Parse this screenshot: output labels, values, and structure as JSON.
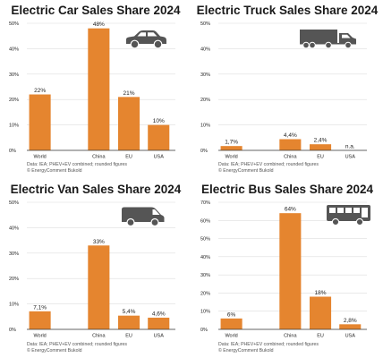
{
  "colors": {
    "bar": "#e5852f",
    "grid": "#dddddd",
    "axis": "#333333",
    "text": "#222222",
    "icon": "#555555"
  },
  "chart_data": [
    {
      "type": "bar",
      "title": "Electric Car Sales Share 2024",
      "icon": "car-icon",
      "categories": [
        "World",
        "China",
        "EU",
        "USA"
      ],
      "values": [
        22,
        48,
        21,
        10
      ],
      "value_labels": [
        "22%",
        "48%",
        "21%",
        "10%"
      ],
      "yticks": [
        "0%",
        "10%",
        "20%",
        "30%",
        "40%",
        "50%"
      ],
      "ylim": [
        0,
        50
      ],
      "note_line1": "Data: IEA; PHEV+EV combined; rounded figures",
      "note_line2": "© EnergyComment Bukold"
    },
    {
      "type": "bar",
      "title": "Electric Truck Sales Share 2024",
      "icon": "truck-icon",
      "categories": [
        "World",
        "China",
        "EU",
        "USA"
      ],
      "values": [
        1.7,
        4.4,
        2.4,
        null
      ],
      "value_labels": [
        "1,7%",
        "4,4%",
        "2,4%",
        "n.a."
      ],
      "yticks": [
        "0%",
        "10%",
        "20%",
        "30%",
        "40%",
        "50%"
      ],
      "ylim": [
        0,
        50
      ],
      "note_line1": "Data: IEA; PHEV+EV combined; rounded figures",
      "note_line2": "© EnergyComment Bukold"
    },
    {
      "type": "bar",
      "title": "Electric Van Sales Share 2024",
      "icon": "van-icon",
      "categories": [
        "World",
        "China",
        "EU",
        "USA"
      ],
      "values": [
        7.1,
        33,
        5.4,
        4.6
      ],
      "value_labels": [
        "7,1%",
        "33%",
        "5,4%",
        "4,6%"
      ],
      "yticks": [
        "0%",
        "10%",
        "20%",
        "30%",
        "40%",
        "50%"
      ],
      "ylim": [
        0,
        50
      ],
      "note_line1": "Data: IEA; PHEV+EV combined; rounded figures",
      "note_line2": "© EnergyComment Bukold"
    },
    {
      "type": "bar",
      "title": "Electric Bus Sales Share 2024",
      "icon": "bus-icon",
      "categories": [
        "World",
        "China",
        "EU",
        "USA"
      ],
      "values": [
        6,
        64,
        18,
        2.8
      ],
      "value_labels": [
        "6%",
        "64%",
        "18%",
        "2,8%"
      ],
      "yticks": [
        "0%",
        "10%",
        "20%",
        "30%",
        "40%",
        "50%",
        "60%",
        "70%"
      ],
      "ylim": [
        0,
        70
      ],
      "note_line1": "Data: IEA; PHEV+EV combined; rounded figures",
      "note_line2": "© EnergyComment Bukold"
    }
  ]
}
